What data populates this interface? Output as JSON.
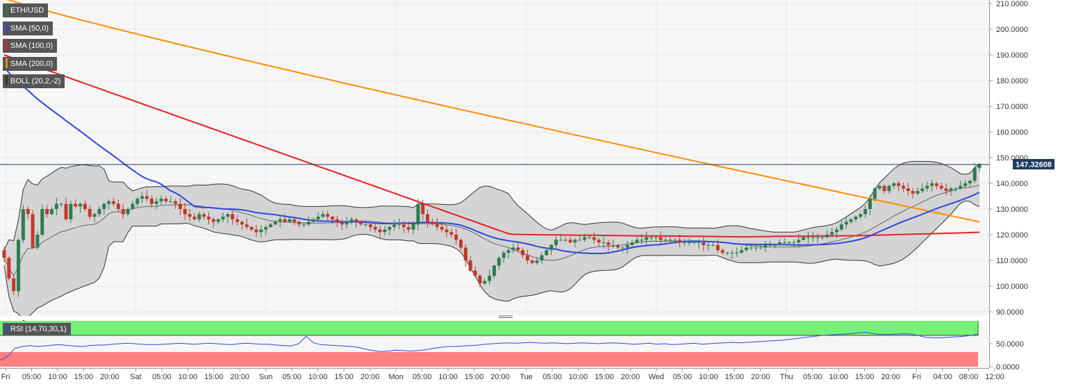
{
  "colors": {
    "background": "#f6f6f6",
    "grid": "#e6e6e6",
    "up": "#2e7d4f",
    "down": "#c0392b",
    "sma50": "#2d47e0",
    "sma100": "#e62020",
    "sma200": "#ff8c00",
    "boll": "#555555",
    "boll_fill": "#cccccc",
    "rsi_line": "#2d47e0",
    "rsi_overbought": "#77f077",
    "rsi_oversold": "#ff8080",
    "price_line": "#1e3a5f",
    "legend_bg": "#555555"
  },
  "legend": {
    "symbol": "ETH/USD",
    "items": [
      {
        "label": "SMA (50,0)",
        "color": "#2d47e0"
      },
      {
        "label": "SMA (100,0)",
        "color": "#e62020"
      },
      {
        "label": "SMA (200,0)",
        "color": "#ff8c00"
      },
      {
        "label": "BOLL (20,2,-2)",
        "color": "#333333"
      }
    ]
  },
  "rsi": {
    "label": "RSI (14,70,30,1)",
    "y_ticks": [
      "50.0000",
      "0.0000"
    ],
    "values": [
      14,
      22,
      40,
      44,
      46,
      44,
      45,
      47,
      48,
      46,
      45,
      44,
      46,
      47,
      47,
      49,
      50,
      51,
      50,
      49,
      48,
      48,
      49,
      50,
      51,
      50,
      49,
      50,
      51,
      50,
      49,
      48,
      50,
      51,
      50,
      49,
      49,
      47,
      46,
      45,
      50,
      66,
      52,
      48,
      47,
      46,
      45,
      44,
      42,
      38,
      35,
      33,
      34,
      36,
      35,
      34,
      35,
      37,
      40,
      42,
      44,
      44,
      45,
      46,
      47,
      49,
      50,
      51,
      52,
      51,
      52,
      53,
      52,
      51,
      52,
      51,
      50,
      51,
      52,
      51,
      50,
      51,
      52,
      51,
      50,
      49,
      50,
      51,
      49,
      50,
      48,
      49,
      50,
      51,
      49,
      50,
      51,
      52,
      53,
      52,
      53,
      54,
      55,
      56,
      57,
      58,
      60,
      62,
      64,
      66,
      68,
      69,
      70,
      71,
      72,
      74,
      75,
      72,
      70,
      70,
      71,
      72,
      71,
      68,
      64,
      63,
      63,
      64,
      65,
      66,
      68,
      71
    ]
  },
  "chart_data": {
    "type": "candlestick",
    "title": "ETH/USD",
    "ylim": [
      88,
      212
    ],
    "y_ticks": [
      "210.0000",
      "200.0000",
      "190.0000",
      "180.0000",
      "170.0000",
      "160.0000",
      "150.0000",
      "140.0000",
      "130.0000",
      "120.0000",
      "110.0000",
      "100.0000",
      "90.0000"
    ],
    "x_ticks": [
      "Fri",
      "05:00",
      "10:00",
      "15:00",
      "20:00",
      "Sat",
      "05:00",
      "10:00",
      "15:00",
      "20:00",
      "Sun",
      "05:00",
      "10:00",
      "15:00",
      "20:00",
      "Mon",
      "05:00",
      "10:00",
      "15:00",
      "20:00",
      "Tue",
      "05:00",
      "10:00",
      "15:00",
      "20:00",
      "Wed",
      "05:00",
      "10:00",
      "15:00",
      "20:00",
      "Thu",
      "05:00",
      "10:00",
      "15:00",
      "20:00",
      "Fri",
      "04:00",
      "08:00",
      "12:00"
    ],
    "current_price": "147.32608",
    "close": [
      111,
      103,
      98,
      118,
      130,
      128,
      115,
      120,
      130,
      128,
      130,
      132,
      132,
      126,
      132,
      131,
      132,
      130,
      127,
      128,
      130,
      132,
      133,
      132,
      130,
      128,
      130,
      132,
      134,
      135,
      134,
      132,
      133,
      134,
      133,
      133,
      132,
      130,
      128,
      127,
      126,
      128,
      127,
      126,
      125,
      126,
      127,
      128,
      126,
      125,
      124,
      123,
      122,
      121,
      122,
      123,
      124,
      125,
      126,
      125,
      126,
      125,
      124,
      124,
      125,
      126,
      127,
      128,
      127,
      126,
      125,
      124,
      125,
      126,
      125,
      124,
      124,
      123,
      122,
      121,
      122,
      123,
      124,
      124,
      123,
      122,
      124,
      132,
      128,
      125,
      124,
      123,
      122,
      121,
      120,
      118,
      115,
      110,
      106,
      104,
      101,
      102,
      104,
      108,
      111,
      113,
      114,
      115,
      114,
      112,
      110,
      109,
      110,
      112,
      114,
      116,
      118,
      118,
      118,
      117,
      118,
      118,
      119,
      119,
      118,
      117,
      117,
      116,
      116,
      115,
      115,
      116,
      117,
      118,
      118,
      119,
      119,
      119,
      118,
      118,
      118,
      118,
      117,
      117,
      117,
      117,
      117,
      116,
      116,
      116,
      114,
      113,
      113,
      113,
      113,
      114,
      115,
      115,
      115,
      115,
      116,
      116,
      116,
      117,
      117,
      117,
      117,
      118,
      119,
      119,
      119,
      119,
      119,
      120,
      121,
      122,
      124,
      125,
      126,
      127,
      128,
      130,
      134,
      138,
      139,
      137,
      139,
      140,
      139,
      138,
      137,
      136,
      137,
      138,
      139,
      140,
      139,
      138,
      137,
      138,
      138,
      139,
      140,
      141,
      146,
      147.3
    ],
    "volatility": 2.2
  }
}
